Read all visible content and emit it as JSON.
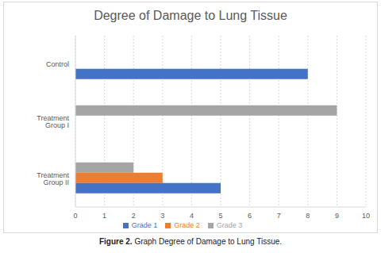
{
  "chart_data": {
    "type": "bar",
    "orientation": "horizontal",
    "title": "Degree of Damage to Lung Tissue",
    "caption": "Figure 2. Graph Degree of Damage to Lung Tissue.",
    "categories": [
      "Control",
      "Treatment Group I",
      "Treatment Group II"
    ],
    "series": [
      {
        "name": "Grade 1",
        "color": "#4472c4",
        "values": [
          8,
          0,
          5
        ]
      },
      {
        "name": "Grade 2",
        "color": "#ed7d31",
        "values": [
          0,
          0,
          3
        ]
      },
      {
        "name": "Grade 3",
        "color": "#a5a5a5",
        "values": [
          0,
          9,
          2
        ]
      }
    ],
    "xlim": [
      0,
      10
    ],
    "xticks": [
      0,
      1,
      2,
      3,
      4,
      5,
      6,
      7,
      8,
      9,
      10
    ],
    "grid": true,
    "legend": "bottom"
  }
}
